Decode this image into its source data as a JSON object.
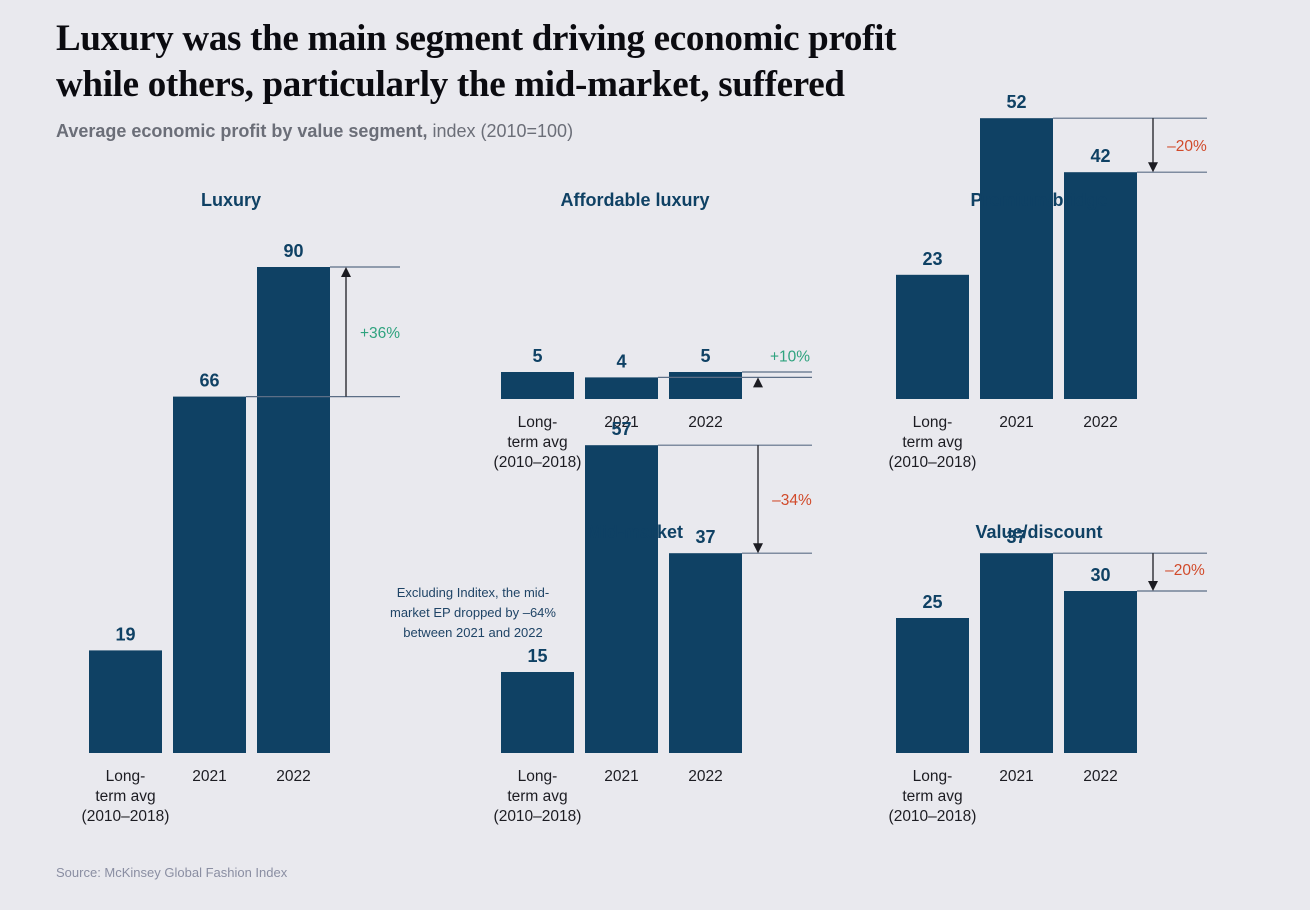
{
  "title_line1": "Luxury was the main segment driving economic profit",
  "title_line2": "while others, particularly the mid-market, suffered",
  "subtitle_bold": "Average economic profit by value segment,",
  "subtitle_rest": " index (2010=100)",
  "source": "Source: McKinsey Global Fashion Index",
  "colors": {
    "bar": "#0f4164",
    "positive": "#2fa37f",
    "negative": "#d14a2a",
    "panel_title": "#0f4164",
    "text": "#1c1c22"
  },
  "chart_data": [
    {
      "type": "bar",
      "title": "Luxury",
      "categories": [
        "Long-term avg (2010–2018)",
        "2021",
        "2022"
      ],
      "category_lines": [
        [
          "Long-",
          "term avg",
          "(2010–2018)"
        ],
        [
          "2021"
        ],
        [
          "2022"
        ]
      ],
      "values": [
        19,
        66,
        90
      ],
      "change": {
        "label": "+36%",
        "direction": "up"
      }
    },
    {
      "type": "bar",
      "title": "Affordable luxury",
      "categories": [
        "Long-term avg (2010–2018)",
        "2021",
        "2022"
      ],
      "category_lines": [
        [
          "Long-",
          "term avg",
          "(2010–2018)"
        ],
        [
          "2021"
        ],
        [
          "2022"
        ]
      ],
      "values": [
        5,
        4,
        5
      ],
      "change": {
        "label": "+10%",
        "direction": "up"
      }
    },
    {
      "type": "bar",
      "title": "Premium/bridge",
      "categories": [
        "Long-term avg (2010–2018)",
        "2021",
        "2022"
      ],
      "category_lines": [
        [
          "Long-",
          "term avg",
          "(2010–2018)"
        ],
        [
          "2021"
        ],
        [
          "2022"
        ]
      ],
      "values": [
        23,
        52,
        42
      ],
      "change": {
        "label": "–20%",
        "direction": "down"
      }
    },
    {
      "type": "bar",
      "title": "Mid-market",
      "categories": [
        "Long-term avg (2010–2018)",
        "2021",
        "2022"
      ],
      "category_lines": [
        [
          "Long-",
          "term avg",
          "(2010–2018)"
        ],
        [
          "2021"
        ],
        [
          "2022"
        ]
      ],
      "values": [
        15,
        57,
        37
      ],
      "change": {
        "label": "–34%",
        "direction": "down"
      },
      "annotation_lines": [
        "Excluding Inditex, the mid-",
        "market EP dropped by –64%",
        "between 2021 and 2022"
      ]
    },
    {
      "type": "bar",
      "title": "Value/discount",
      "categories": [
        "Long-term avg (2010–2018)",
        "2021",
        "2022"
      ],
      "category_lines": [
        [
          "Long-",
          "term avg",
          "(2010–2018)"
        ],
        [
          "2021"
        ],
        [
          "2022"
        ]
      ],
      "values": [
        25,
        37,
        30
      ],
      "change": {
        "label": "–20%",
        "direction": "down"
      }
    }
  ]
}
